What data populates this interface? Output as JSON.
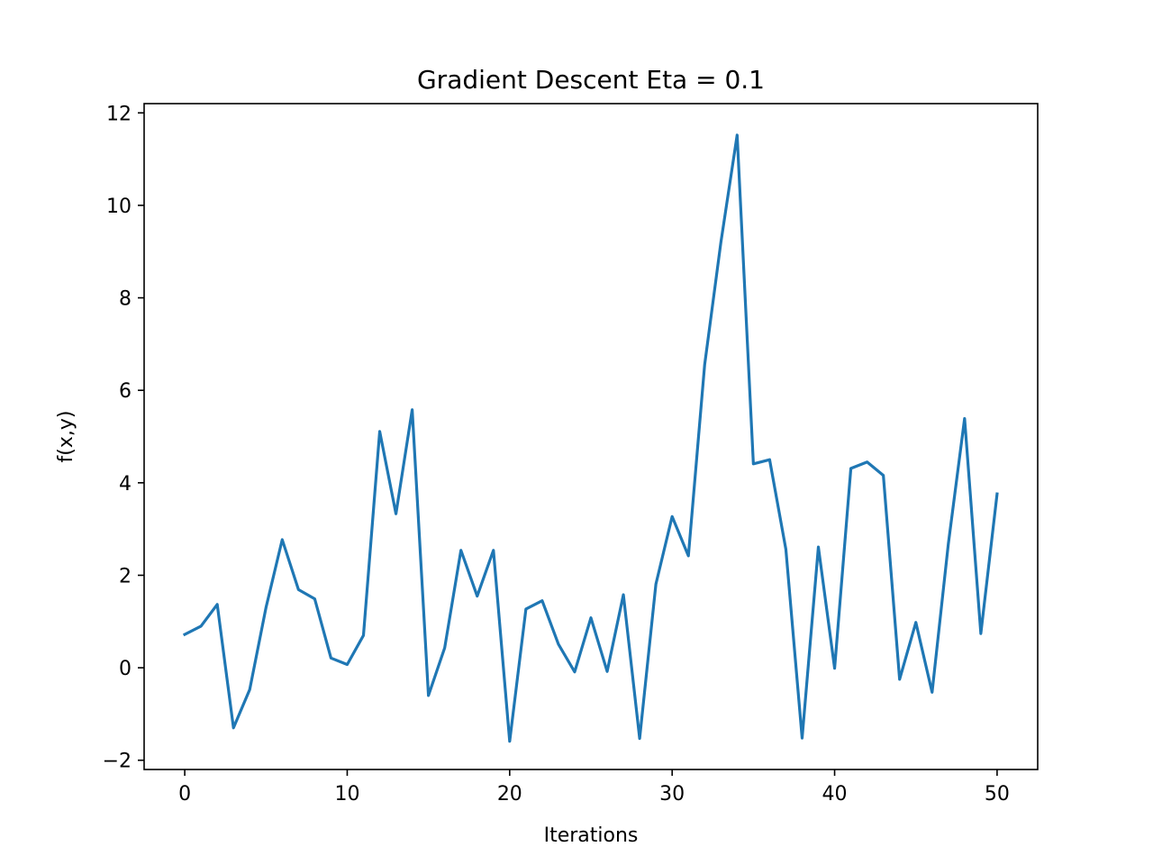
{
  "chart_data": {
    "type": "line",
    "title": "Gradient Descent Eta = 0.1",
    "xlabel": "Iterations",
    "ylabel": "f(x,y)",
    "xlim": [
      -2.5,
      52.5
    ],
    "ylim": [
      -2.2,
      12.2
    ],
    "xticks": [
      0,
      10,
      20,
      30,
      40,
      50
    ],
    "yticks": [
      -2,
      0,
      2,
      4,
      6,
      8,
      10,
      12
    ],
    "ytick_labels": [
      "−2",
      "0",
      "2",
      "4",
      "6",
      "8",
      "10",
      "12"
    ],
    "grid": false,
    "series": [
      {
        "color": "#1f77b4",
        "x": [
          0,
          1,
          2,
          3,
          4,
          5,
          6,
          7,
          8,
          9,
          10,
          11,
          12,
          13,
          14,
          15,
          16,
          17,
          18,
          19,
          20,
          21,
          22,
          23,
          24,
          25,
          26,
          27,
          28,
          29,
          30,
          31,
          32,
          33,
          34,
          35,
          36,
          37,
          38,
          39,
          40,
          41,
          42,
          43,
          44,
          45,
          46,
          47,
          48,
          49,
          50
        ],
        "values": [
          0.72,
          0.9,
          1.37,
          -1.3,
          -0.47,
          1.3,
          2.77,
          1.69,
          1.49,
          0.21,
          0.07,
          0.7,
          5.11,
          3.33,
          5.58,
          -0.6,
          0.43,
          2.54,
          1.55,
          2.54,
          -1.59,
          1.27,
          1.45,
          0.51,
          -0.09,
          1.08,
          -0.08,
          1.58,
          -1.53,
          1.81,
          3.27,
          2.42,
          6.55,
          9.2,
          11.52,
          4.41,
          4.5,
          2.56,
          -1.52,
          2.61,
          -0.01,
          4.31,
          4.45,
          4.16,
          -0.25,
          0.98,
          -0.53,
          2.68,
          5.39,
          0.74,
          3.76
        ]
      }
    ]
  }
}
